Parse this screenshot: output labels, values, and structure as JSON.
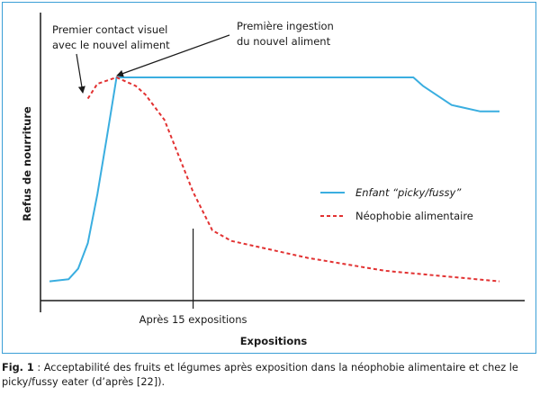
{
  "chart_data": {
    "type": "line",
    "xlabel": "Expositions",
    "ylabel": "Refus de nourriture",
    "x_tick_label": "Après 15 expositions",
    "x_marker": 15,
    "legend_position": "right-middle",
    "series": [
      {
        "name": "Enfant \"picky/fussy\"",
        "style": "solid",
        "color": "#3aaee0",
        "points": [
          [
            0,
            0.04
          ],
          [
            2,
            0.05
          ],
          [
            3,
            0.1
          ],
          [
            4,
            0.22
          ],
          [
            5,
            0.45
          ],
          [
            6,
            0.72
          ],
          [
            7,
            1.0
          ],
          [
            15,
            1.0
          ],
          [
            25,
            1.0
          ],
          [
            38,
            1.0
          ],
          [
            39,
            0.96
          ],
          [
            42,
            0.87
          ],
          [
            45,
            0.84
          ],
          [
            47,
            0.84
          ]
        ]
      },
      {
        "name": "Néophobie alimentaire",
        "style": "dashed",
        "color": "#e23232",
        "points": [
          [
            4,
            0.9
          ],
          [
            5,
            0.97
          ],
          [
            7,
            1.0
          ],
          [
            9,
            0.96
          ],
          [
            10,
            0.92
          ],
          [
            12,
            0.8
          ],
          [
            15,
            0.46
          ],
          [
            17,
            0.28
          ],
          [
            19,
            0.23
          ],
          [
            27,
            0.15
          ],
          [
            35,
            0.09
          ],
          [
            47,
            0.04
          ]
        ]
      }
    ],
    "annotations": [
      {
        "text": "Premier contact visuel",
        "text2": "avec le nouvel aliment"
      },
      {
        "text": "Première ingestion",
        "text2": "du nouvel aliment"
      }
    ],
    "legend": [
      "Enfant “picky/fussy”",
      "Néophobie alimentaire"
    ]
  },
  "caption": {
    "fig_label": "Fig. 1",
    "text": " : Acceptabilité des fruits et légumes après exposition dans la néophobie alimentaire et chez le picky/fussy eater (d’après [22])."
  }
}
